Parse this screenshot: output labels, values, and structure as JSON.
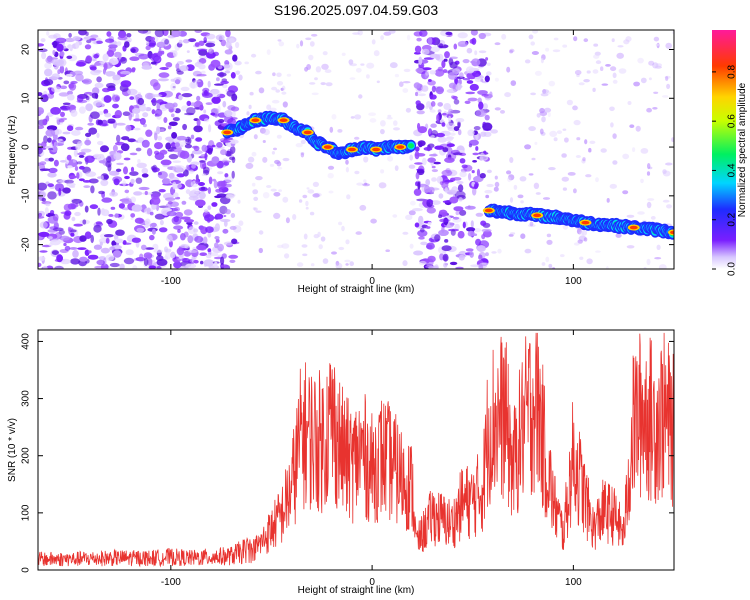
{
  "title": "S196.2025.097.04.59.G03",
  "colors": {
    "snr_line": "#e8332f",
    "spectro_noise": "#7a1fff",
    "frame": "#000000"
  },
  "chart_data": [
    {
      "type": "heatmap",
      "xlabel": "Height of straight line (km)",
      "ylabel": "Frequency (Hz)",
      "xlim": [
        -166,
        150
      ],
      "ylim": [
        -25,
        24
      ],
      "xticks": [
        -100,
        0,
        100
      ],
      "yticks": [
        -20,
        -10,
        0,
        10,
        20
      ],
      "colorbar": {
        "label": "Normalized spectral amplitude",
        "range": [
          0,
          0.97
        ],
        "ticks": [
          0.0,
          0.2,
          0.4,
          0.6,
          0.8
        ],
        "tick_labels": [
          "0.0",
          "0.2",
          "0.4",
          "0.6",
          "0.8"
        ],
        "colormap": "rainbow (white → purple → blue → cyan → green → yellow → red → magenta)"
      },
      "noise_regions": [
        {
          "x": [
            -166,
            -67
          ],
          "density": "dense"
        },
        {
          "x": [
            -67,
            22
          ],
          "density": "sparse"
        },
        {
          "x": [
            22,
            58
          ],
          "density": "dense"
        },
        {
          "x": [
            58,
            150
          ],
          "density": "sparse"
        }
      ],
      "signal_track": [
        {
          "x": -72,
          "y": 3
        },
        {
          "x": -65,
          "y": 4
        },
        {
          "x": -58,
          "y": 5.5
        },
        {
          "x": -50,
          "y": 6
        },
        {
          "x": -44,
          "y": 5.5
        },
        {
          "x": -38,
          "y": 4
        },
        {
          "x": -32,
          "y": 3
        },
        {
          "x": -28,
          "y": 1
        },
        {
          "x": -22,
          "y": 0
        },
        {
          "x": -16,
          "y": -1.5
        },
        {
          "x": -10,
          "y": -0.5
        },
        {
          "x": -4,
          "y": 0
        },
        {
          "x": 2,
          "y": -0.5
        },
        {
          "x": 8,
          "y": 0
        },
        {
          "x": 14,
          "y": 0
        },
        {
          "x": 20,
          "y": 0
        },
        {
          "x": 58,
          "y": -13
        },
        {
          "x": 70,
          "y": -13.5
        },
        {
          "x": 82,
          "y": -14
        },
        {
          "x": 94,
          "y": -14.5
        },
        {
          "x": 106,
          "y": -15.5
        },
        {
          "x": 118,
          "y": -16
        },
        {
          "x": 130,
          "y": -16.5
        },
        {
          "x": 142,
          "y": -17
        },
        {
          "x": 150,
          "y": -17.5
        }
      ],
      "peak_amplitude": 0.9
    },
    {
      "type": "line",
      "xlabel": "Height of straight line (km)",
      "ylabel": "SNR (10 * v/v)",
      "xlim": [
        -166,
        150
      ],
      "ylim": [
        0,
        420
      ],
      "xticks": [
        -100,
        0,
        100
      ],
      "yticks": [
        0,
        100,
        200,
        300,
        400
      ],
      "series": [
        {
          "x": [
            -166,
            -150,
            -130,
            -110,
            -100,
            -90,
            -80,
            -70,
            -60,
            -55,
            -50,
            -45,
            -40,
            -35,
            -30,
            -25,
            -20,
            -15,
            -10,
            -5,
            0,
            5,
            10,
            15,
            20,
            22,
            25,
            30,
            35,
            40,
            45,
            50,
            55,
            58,
            62,
            66,
            70,
            74,
            78,
            82,
            86,
            90,
            95,
            100,
            105,
            110,
            115,
            120,
            125,
            130,
            135,
            140,
            145,
            150
          ],
          "values": [
            20,
            20,
            22,
            22,
            24,
            22,
            24,
            26,
            40,
            60,
            90,
            120,
            180,
            300,
            290,
            280,
            330,
            260,
            230,
            260,
            220,
            250,
            230,
            200,
            180,
            60,
            80,
            120,
            110,
            100,
            150,
            150,
            180,
            320,
            330,
            340,
            220,
            300,
            350,
            380,
            250,
            150,
            80,
            250,
            170,
            90,
            130,
            120,
            80,
            320,
            350,
            320,
            340,
            300
          ]
        }
      ]
    }
  ]
}
